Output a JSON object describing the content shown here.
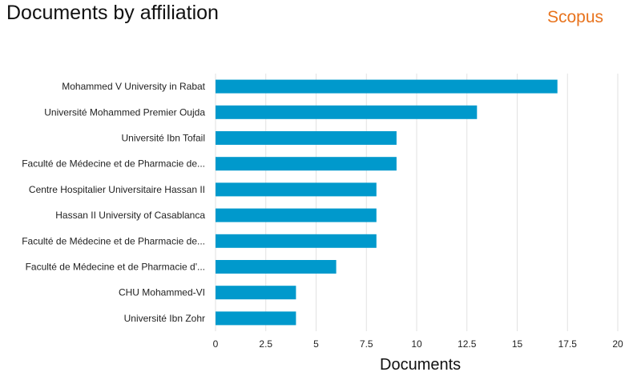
{
  "header": {
    "title": "Documents by affiliation",
    "brand": "Scopus"
  },
  "colors": {
    "bar": "#0099cc",
    "grid": "#e2e2e2",
    "brand": "#e8731d"
  },
  "chart_data": {
    "type": "bar",
    "orientation": "horizontal",
    "title": "Documents by affiliation",
    "xlabel": "Documents",
    "ylabel": "",
    "xlim": [
      0,
      20
    ],
    "xticks": [
      0,
      2.5,
      5,
      7.5,
      10,
      12.5,
      15,
      17.5,
      20
    ],
    "xtick_labels": [
      "0",
      "2.5",
      "5",
      "7.5",
      "10",
      "12.5",
      "15",
      "17.5",
      "20"
    ],
    "grid": "vertical",
    "categories": [
      "Mohammed V University in Rabat",
      "Université Mohammed Premier Oujda",
      "Université Ibn Tofail",
      "Faculté de Médecine et de Pharmacie de...",
      "Centre Hospitalier Universitaire Hassan II",
      "Hassan II University of Casablanca",
      "Faculté de Médecine et de Pharmacie de...",
      "Faculté de Médecine et de Pharmacie d'...",
      "CHU Mohammed-VI",
      "Université Ibn Zohr"
    ],
    "values": [
      17,
      13,
      9,
      9,
      8,
      8,
      8,
      6,
      4,
      4
    ]
  }
}
